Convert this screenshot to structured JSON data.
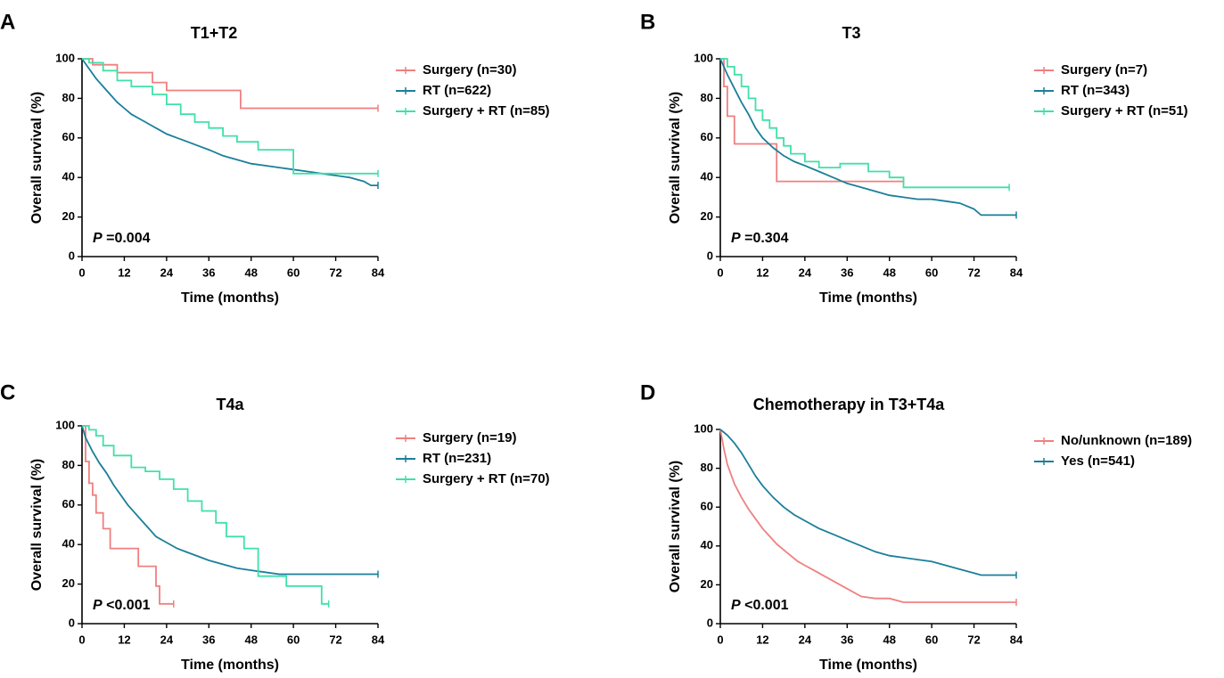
{
  "colors": {
    "surgery": "#f08080",
    "rt": "#1a7f9a",
    "surgery_rt": "#40e0a8",
    "axis": "#000000"
  },
  "chart_data": [
    {
      "letter": "A",
      "type": "line",
      "title": "T1+T2",
      "xlabel": "Time (months)",
      "ylabel": "Overall survival (%)",
      "xlim": [
        0,
        84
      ],
      "ylim": [
        0,
        100
      ],
      "xticks": [
        "0",
        "12",
        "24",
        "36",
        "48",
        "60",
        "72",
        "84"
      ],
      "yticks": [
        "0",
        "20",
        "40",
        "60",
        "80",
        "100"
      ],
      "pvalue": {
        "symbol": "P",
        "text": " =0.004"
      },
      "legend_position": "right",
      "series": [
        {
          "name": "Surgery (n=30)",
          "color_key": "surgery",
          "x": [
            0,
            3,
            3,
            10,
            10,
            20,
            20,
            24,
            24,
            45,
            45,
            84
          ],
          "y": [
            100,
            100,
            97,
            97,
            93,
            93,
            88,
            88,
            84,
            84,
            75,
            75
          ]
        },
        {
          "name": "RT (n=622)",
          "color_key": "rt",
          "x": [
            0,
            2,
            4,
            6,
            8,
            10,
            12,
            14,
            16,
            18,
            20,
            22,
            24,
            27,
            30,
            33,
            36,
            40,
            44,
            48,
            52,
            56,
            60,
            64,
            68,
            72,
            76,
            80,
            82,
            84
          ],
          "y": [
            100,
            95,
            90,
            86,
            82,
            78,
            75,
            72,
            70,
            68,
            66,
            64,
            62,
            60,
            58,
            56,
            54,
            51,
            49,
            47,
            46,
            45,
            44,
            43,
            42,
            41,
            40,
            38,
            36,
            36
          ]
        },
        {
          "name": "Surgery + RT (n=85)",
          "color_key": "surgery_rt",
          "x": [
            0,
            2,
            2,
            6,
            6,
            10,
            10,
            14,
            14,
            20,
            20,
            24,
            24,
            28,
            28,
            32,
            32,
            36,
            36,
            40,
            40,
            44,
            44,
            50,
            50,
            60,
            60,
            84
          ],
          "y": [
            100,
            100,
            98,
            98,
            94,
            94,
            89,
            89,
            86,
            86,
            82,
            82,
            77,
            77,
            72,
            72,
            68,
            68,
            65,
            65,
            61,
            61,
            58,
            58,
            54,
            54,
            42,
            42
          ]
        }
      ]
    },
    {
      "letter": "B",
      "type": "line",
      "title": "T3",
      "xlabel": "Time (months)",
      "ylabel": "Overall survival (%)",
      "xlim": [
        0,
        84
      ],
      "ylim": [
        0,
        100
      ],
      "xticks": [
        "0",
        "12",
        "24",
        "36",
        "48",
        "60",
        "72",
        "84"
      ],
      "yticks": [
        "0",
        "20",
        "40",
        "60",
        "80",
        "100"
      ],
      "pvalue": {
        "symbol": "P",
        "text": " =0.304"
      },
      "legend_position": "right",
      "series": [
        {
          "name": "Surgery (n=7)",
          "color_key": "surgery",
          "x": [
            0,
            1,
            1,
            2,
            2,
            4,
            4,
            16,
            16,
            52
          ],
          "y": [
            100,
            100,
            86,
            86,
            71,
            71,
            57,
            57,
            38,
            38
          ]
        },
        {
          "name": "RT (n=343)",
          "color_key": "rt",
          "x": [
            0,
            2,
            4,
            6,
            8,
            10,
            12,
            15,
            18,
            21,
            24,
            28,
            32,
            36,
            40,
            44,
            48,
            52,
            56,
            60,
            64,
            68,
            72,
            74,
            78,
            84
          ],
          "y": [
            100,
            92,
            85,
            78,
            72,
            65,
            60,
            55,
            51,
            48,
            46,
            43,
            40,
            37,
            35,
            33,
            31,
            30,
            29,
            29,
            28,
            27,
            24,
            21,
            21,
            21
          ]
        },
        {
          "name": "Surgery + RT (n=51)",
          "color_key": "surgery_rt",
          "x": [
            0,
            2,
            2,
            4,
            4,
            6,
            6,
            8,
            8,
            10,
            10,
            12,
            12,
            14,
            14,
            16,
            16,
            18,
            18,
            20,
            20,
            24,
            24,
            28,
            28,
            34,
            34,
            42,
            42,
            48,
            48,
            52,
            52,
            82
          ],
          "y": [
            100,
            100,
            96,
            96,
            92,
            92,
            86,
            86,
            80,
            80,
            74,
            74,
            69,
            69,
            65,
            65,
            60,
            60,
            56,
            56,
            52,
            52,
            48,
            48,
            45,
            45,
            47,
            47,
            43,
            43,
            40,
            40,
            35,
            35
          ]
        }
      ]
    },
    {
      "letter": "C",
      "type": "line",
      "title": "T4a",
      "xlabel": "Time (months)",
      "ylabel": "Overall survival (%)",
      "xlim": [
        0,
        84
      ],
      "ylim": [
        0,
        100
      ],
      "xticks": [
        "0",
        "12",
        "24",
        "36",
        "48",
        "60",
        "72",
        "84"
      ],
      "yticks": [
        "0",
        "20",
        "40",
        "60",
        "80",
        "100"
      ],
      "pvalue": {
        "symbol": "P",
        "text": " <0.001"
      },
      "legend_position": "right",
      "series": [
        {
          "name": "Surgery (n=19)",
          "color_key": "surgery",
          "x": [
            0,
            1,
            1,
            2,
            2,
            3,
            3,
            4,
            4,
            6,
            6,
            8,
            8,
            16,
            16,
            21,
            21,
            22,
            22,
            26
          ],
          "y": [
            100,
            100,
            82,
            82,
            71,
            71,
            65,
            65,
            56,
            56,
            48,
            48,
            38,
            38,
            29,
            29,
            19,
            19,
            10,
            10
          ]
        },
        {
          "name": "RT (n=231)",
          "color_key": "rt",
          "x": [
            0,
            1,
            3,
            5,
            7,
            9,
            11,
            13,
            15,
            17,
            19,
            21,
            24,
            27,
            30,
            33,
            36,
            40,
            44,
            48,
            52,
            56,
            60,
            64,
            68,
            72,
            76,
            80,
            84
          ],
          "y": [
            100,
            94,
            87,
            81,
            76,
            70,
            65,
            60,
            56,
            52,
            48,
            44,
            41,
            38,
            36,
            34,
            32,
            30,
            28,
            27,
            26,
            25,
            25,
            25,
            25,
            25,
            25,
            25,
            25
          ]
        },
        {
          "name": "Surgery + RT (n=70)",
          "color_key": "surgery_rt",
          "x": [
            0,
            2,
            2,
            4,
            4,
            6,
            6,
            9,
            9,
            14,
            14,
            18,
            18,
            22,
            22,
            26,
            26,
            30,
            30,
            34,
            34,
            38,
            38,
            41,
            41,
            46,
            46,
            50,
            50,
            58,
            58,
            68,
            68,
            70
          ],
          "y": [
            100,
            100,
            98,
            98,
            95,
            95,
            90,
            90,
            85,
            85,
            79,
            79,
            77,
            77,
            73,
            73,
            68,
            68,
            62,
            62,
            57,
            57,
            51,
            51,
            44,
            44,
            38,
            38,
            24,
            24,
            19,
            19,
            10,
            10
          ]
        }
      ]
    },
    {
      "letter": "D",
      "type": "line",
      "title": "Chemotherapy in T3+T4a",
      "xlabel": "Time (months)",
      "ylabel": "Overall survival (%)",
      "xlim": [
        0,
        84
      ],
      "ylim": [
        0,
        100
      ],
      "xticks": [
        "0",
        "12",
        "24",
        "36",
        "48",
        "60",
        "72",
        "84"
      ],
      "yticks": [
        "0",
        "20",
        "40",
        "60",
        "80",
        "100"
      ],
      "pvalue": {
        "symbol": "P",
        "text": " <0.001"
      },
      "legend_position": "right",
      "series": [
        {
          "name": "No/unknown (n=189)",
          "color_key": "surgery",
          "x": [
            0,
            1,
            2,
            4,
            6,
            8,
            10,
            12,
            14,
            16,
            18,
            20,
            22,
            24,
            27,
            30,
            33,
            36,
            40,
            44,
            48,
            52,
            56,
            60,
            64,
            68,
            72,
            76,
            80,
            84
          ],
          "y": [
            100,
            90,
            82,
            72,
            65,
            59,
            54,
            49,
            45,
            41,
            38,
            35,
            32,
            30,
            27,
            24,
            21,
            18,
            14,
            13,
            13,
            11,
            11,
            11,
            11,
            11,
            11,
            11,
            11,
            11
          ]
        },
        {
          "name": "Yes (n=541)",
          "color_key": "rt",
          "x": [
            0,
            2,
            4,
            6,
            8,
            10,
            12,
            15,
            18,
            21,
            24,
            28,
            32,
            36,
            40,
            44,
            48,
            52,
            56,
            60,
            64,
            68,
            72,
            74,
            78,
            82,
            84
          ],
          "y": [
            100,
            97,
            93,
            88,
            82,
            76,
            71,
            65,
            60,
            56,
            53,
            49,
            46,
            43,
            40,
            37,
            35,
            34,
            33,
            32,
            30,
            28,
            26,
            25,
            25,
            25,
            25
          ]
        }
      ]
    }
  ]
}
